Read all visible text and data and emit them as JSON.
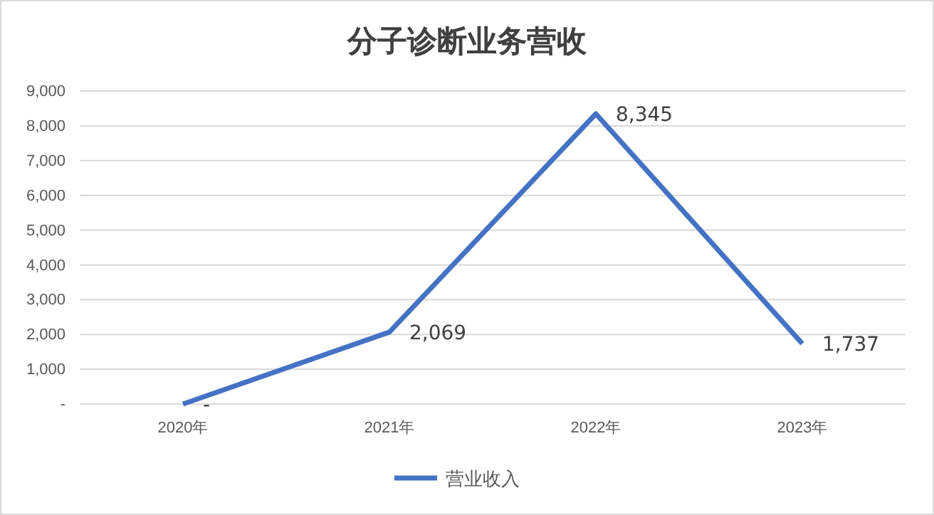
{
  "chart_data": {
    "type": "line",
    "title": "分子诊断业务营收",
    "categories": [
      "2020年",
      "2021年",
      "2022年",
      "2023年"
    ],
    "series": [
      {
        "name": "营业收入",
        "color": "#4472c4",
        "values": [
          0,
          2069,
          8345,
          1737
        ],
        "value_labels": [
          "-",
          "2,069",
          "8,345",
          "1,737"
        ]
      }
    ],
    "ylim": [
      0,
      9000
    ],
    "yticks": [
      {
        "value": 0,
        "label": "-"
      },
      {
        "value": 1000,
        "label": "1,000"
      },
      {
        "value": 2000,
        "label": "2,000"
      },
      {
        "value": 3000,
        "label": "3,000"
      },
      {
        "value": 4000,
        "label": "4,000"
      },
      {
        "value": 5000,
        "label": "5,000"
      },
      {
        "value": 6000,
        "label": "6,000"
      },
      {
        "value": 7000,
        "label": "7,000"
      },
      {
        "value": 8000,
        "label": "8,000"
      },
      {
        "value": 9000,
        "label": "9,000"
      }
    ],
    "grid": "y",
    "legend": "bottom",
    "marker": "none",
    "line_style": "solid"
  }
}
